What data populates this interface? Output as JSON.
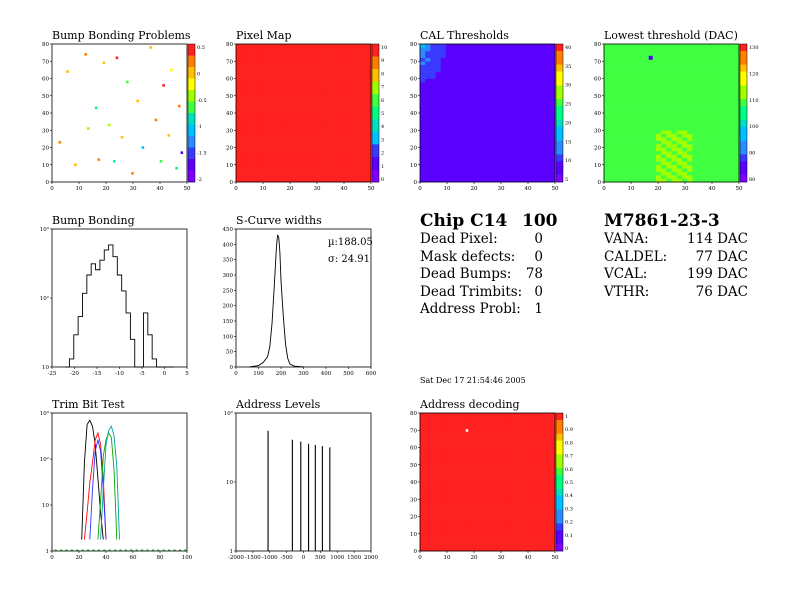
{
  "colors": {
    "palette": [
      "#7f00ff",
      "#5a00ff",
      "#3a3aff",
      "#2a8cff",
      "#00c0ff",
      "#00e0c0",
      "#00ff80",
      "#40ff40",
      "#a0ff00",
      "#ffff00",
      "#ffc000",
      "#ff8000",
      "#ff2020"
    ],
    "frame": "#000000",
    "background": "#ffffff"
  },
  "panels": {
    "bump_map": {
      "title": "Bump Bonding Problems",
      "yticks": [
        "80",
        "70",
        "60",
        "50",
        "40",
        "30",
        "20",
        "10",
        "0"
      ],
      "xticks": [
        "0",
        "10",
        "20",
        "30",
        "40",
        "50"
      ],
      "zticks": [
        "0.5",
        "0",
        "-0.5",
        "-1",
        "-1.5",
        "-2"
      ]
    },
    "pixel_map": {
      "title": "Pixel Map",
      "yticks": [
        "80",
        "70",
        "60",
        "50",
        "40",
        "30",
        "20",
        "10",
        "0"
      ],
      "xticks": [
        "0",
        "10",
        "20",
        "30",
        "40",
        "50"
      ],
      "zticks": [
        "10",
        "9",
        "8",
        "7",
        "6",
        "5",
        "4",
        "3",
        "2",
        "1",
        "0"
      ]
    },
    "cal_thresholds": {
      "title": "CAL Thresholds",
      "yticks": [
        "80",
        "70",
        "60",
        "50",
        "40",
        "30",
        "20",
        "10",
        "0"
      ],
      "xticks": [
        "0",
        "10",
        "20",
        "30",
        "40",
        "50"
      ],
      "zticks": [
        "40",
        "35",
        "30",
        "25",
        "20",
        "15",
        "10",
        "5"
      ]
    },
    "lowest_threshold": {
      "title": "Lowest threshold (DAC)",
      "yticks": [
        "80",
        "70",
        "60",
        "50",
        "40",
        "30",
        "20",
        "10",
        "0"
      ],
      "xticks": [
        "0",
        "10",
        "20",
        "30",
        "40",
        "50"
      ],
      "zticks": [
        "130",
        "120",
        "110",
        "100",
        "90",
        "80"
      ]
    },
    "bump_bonding": {
      "title": "Bump Bonding",
      "yticks": [
        "10³",
        "10²",
        "10"
      ],
      "xticks": [
        "-25",
        "-20",
        "-15",
        "-10",
        "-5",
        "0",
        "5"
      ]
    },
    "scurve_widths": {
      "title": "S-Curve widths",
      "yticks": [
        "450",
        "400",
        "350",
        "300",
        "250",
        "200",
        "150",
        "100",
        "50",
        "0"
      ],
      "xticks": [
        "0",
        "100",
        "200",
        "300",
        "400",
        "500",
        "600"
      ],
      "stat_mean": "µ:188.05",
      "stat_sigma": "σ: 24.91"
    },
    "trim_bit": {
      "title": "Trim Bit Test",
      "yticks": [
        "10³",
        "10²",
        "10",
        "1"
      ],
      "xticks": [
        "0",
        "20",
        "40",
        "60",
        "80",
        "100"
      ]
    },
    "address_levels": {
      "title": "Address Levels",
      "yticks": [
        "10²",
        "10",
        "1"
      ],
      "xticks": [
        "-2000",
        "-1500",
        "-1000",
        "-500",
        "0",
        "500",
        "1000",
        "1500",
        "2000"
      ]
    },
    "address_decoding": {
      "title": "Address decoding",
      "yticks": [
        "80",
        "70",
        "60",
        "50",
        "40",
        "30",
        "20",
        "10",
        "0"
      ],
      "xticks": [
        "0",
        "10",
        "20",
        "30",
        "40",
        "50"
      ],
      "zticks": [
        "1",
        "0.9",
        "0.8",
        "0.7",
        "0.6",
        "0.5",
        "0.4",
        "0.3",
        "0.2",
        "0.1",
        "0"
      ]
    }
  },
  "summary": {
    "chip_label": "Chip C14",
    "chip_value": "100",
    "rows": [
      {
        "label": "Dead Pixel:",
        "value": "0"
      },
      {
        "label": "Mask defects:",
        "value": "0"
      },
      {
        "label": "Dead Bumps:",
        "value": "78"
      },
      {
        "label": "Dead Trimbits:",
        "value": "0"
      },
      {
        "label": "Address Probl:",
        "value": "1"
      }
    ],
    "module": "M7861-23-3",
    "dacs": [
      {
        "label": "VANA:",
        "value": "114 DAC"
      },
      {
        "label": "CALDEL:",
        "value": "77 DAC"
      },
      {
        "label": "VCAL:",
        "value": "199 DAC"
      },
      {
        "label": "VTHR:",
        "value": "76 DAC"
      }
    ],
    "timestamp": "Sat Dec 17 21:54:46 2005"
  },
  "chart_data": [
    {
      "type": "heatmap",
      "title": "Bump Bonding Problems",
      "x_range": [
        0,
        52
      ],
      "y_range": [
        0,
        80
      ],
      "z_range": [
        -2,
        0.6
      ],
      "background_value": "empty",
      "points": [
        {
          "x": 3,
          "y": 23,
          "z": 0.3
        },
        {
          "x": 6,
          "y": 64,
          "z": 0.1
        },
        {
          "x": 9,
          "y": 10,
          "z": 0.2
        },
        {
          "x": 13,
          "y": 74,
          "z": 0.3
        },
        {
          "x": 14,
          "y": 31,
          "z": -0.2
        },
        {
          "x": 17,
          "y": 43,
          "z": -0.6
        },
        {
          "x": 18,
          "y": 13,
          "z": 0.4
        },
        {
          "x": 20,
          "y": 69,
          "z": 0.2
        },
        {
          "x": 22,
          "y": 33,
          "z": -0.3
        },
        {
          "x": 24,
          "y": 12,
          "z": -0.8
        },
        {
          "x": 25,
          "y": 72,
          "z": 0.5
        },
        {
          "x": 27,
          "y": 26,
          "z": 0.2
        },
        {
          "x": 29,
          "y": 58,
          "z": -0.4
        },
        {
          "x": 31,
          "y": 5,
          "z": 0.3
        },
        {
          "x": 33,
          "y": 47,
          "z": 0.1
        },
        {
          "x": 35,
          "y": 20,
          "z": -1.2
        },
        {
          "x": 38,
          "y": 78,
          "z": 0.2
        },
        {
          "x": 40,
          "y": 36,
          "z": 0.3
        },
        {
          "x": 42,
          "y": 12,
          "z": -0.5
        },
        {
          "x": 43,
          "y": 56,
          "z": 0.5
        },
        {
          "x": 45,
          "y": 27,
          "z": 0.2
        },
        {
          "x": 46,
          "y": 65,
          "z": -0.1
        },
        {
          "x": 48,
          "y": 8,
          "z": -0.8
        },
        {
          "x": 49,
          "y": 44,
          "z": 0.3
        },
        {
          "x": 50,
          "y": 17,
          "z": -1.8
        }
      ]
    },
    {
      "type": "heatmap",
      "title": "Pixel Map",
      "x_range": [
        0,
        52
      ],
      "y_range": [
        0,
        80
      ],
      "z_range": [
        0,
        10
      ],
      "uniform_value": 10
    },
    {
      "type": "heatmap",
      "title": "CAL Thresholds",
      "x_range": [
        0,
        52
      ],
      "y_range": [
        0,
        80
      ],
      "z_range": [
        0,
        42
      ],
      "typical_value": 4,
      "hot_region": {
        "x": [
          0,
          12
        ],
        "y": [
          55,
          80
        ],
        "max_value": 15
      }
    },
    {
      "type": "heatmap",
      "title": "Lowest threshold (DAC)",
      "x_range": [
        0,
        52
      ],
      "y_range": [
        0,
        80
      ],
      "z_range": [
        75,
        132
      ],
      "typical_value": 106,
      "hot_pixel": {
        "x": 18,
        "y": 72,
        "value": 80
      },
      "warm_region": {
        "x": [
          20,
          33
        ],
        "y": [
          0,
          30
        ],
        "value": 112
      }
    },
    {
      "type": "bar",
      "title": "Bump Bonding",
      "x_range": [
        -25,
        6
      ],
      "log_y": true,
      "y_range": [
        2,
        2000
      ],
      "bins": [
        -22,
        -21,
        -20,
        -19,
        -18,
        -17,
        -16,
        -15,
        -14,
        -13,
        -12,
        -11,
        -10,
        -9,
        -8,
        -7,
        -6,
        -5,
        -4,
        -3,
        -2,
        -1,
        0,
        1,
        2
      ],
      "values": [
        0,
        3,
        10,
        25,
        80,
        200,
        350,
        260,
        420,
        700,
        900,
        500,
        200,
        90,
        30,
        8,
        0,
        0,
        30,
        10,
        3,
        0,
        2,
        0,
        0
      ]
    },
    {
      "type": "line",
      "title": "S-Curve widths",
      "x_range": [
        0,
        600
      ],
      "y_range": [
        0,
        480
      ],
      "x": [
        60,
        100,
        120,
        140,
        150,
        160,
        170,
        180,
        185,
        190,
        195,
        200,
        210,
        220,
        230,
        240,
        260,
        300
      ],
      "y": [
        0,
        5,
        15,
        35,
        70,
        150,
        280,
        420,
        460,
        450,
        400,
        300,
        180,
        80,
        30,
        10,
        3,
        0
      ]
    },
    {
      "type": "line",
      "title": "Trim Bit Test",
      "x_range": [
        0,
        100
      ],
      "log_y": true,
      "y_range": [
        0.5,
        2000
      ],
      "series": [
        {
          "x": [
            22,
            24,
            26,
            28,
            30,
            32,
            34,
            36,
            38
          ],
          "y": [
            1,
            100,
            1000,
            1300,
            900,
            300,
            40,
            5,
            1
          ]
        },
        {
          "x": [
            24,
            26,
            28,
            30,
            32,
            34,
            36,
            38,
            40
          ],
          "y": [
            1,
            5,
            30,
            100,
            400,
            600,
            300,
            40,
            1
          ]
        },
        {
          "x": [
            28,
            30,
            32,
            34,
            36,
            38,
            40
          ],
          "y": [
            1,
            20,
            200,
            400,
            200,
            20,
            1
          ]
        },
        {
          "x": [
            34,
            36,
            38,
            40,
            42,
            44,
            46,
            48
          ],
          "y": [
            1,
            10,
            150,
            400,
            600,
            450,
            60,
            1
          ]
        },
        {
          "x": [
            36,
            38,
            40,
            42,
            44,
            46,
            48,
            50
          ],
          "y": [
            1,
            20,
            300,
            700,
            900,
            500,
            80,
            1
          ]
        }
      ]
    },
    {
      "type": "bar",
      "title": "Address Levels",
      "x_range": [
        -2000,
        2000
      ],
      "log_y": true,
      "y_range": [
        0.8,
        400
      ],
      "spikes": [
        -1050,
        -330,
        -80,
        150,
        350,
        560,
        780
      ],
      "values": [
        180,
        120,
        110,
        100,
        95,
        90,
        85
      ]
    },
    {
      "type": "heatmap",
      "title": "Address decoding",
      "x_range": [
        0,
        52
      ],
      "y_range": [
        0,
        80
      ],
      "z_range": [
        0,
        1
      ],
      "uniform_value": 1,
      "defect_pixel": {
        "x": 18,
        "y": 70,
        "value": 0
      }
    }
  ]
}
